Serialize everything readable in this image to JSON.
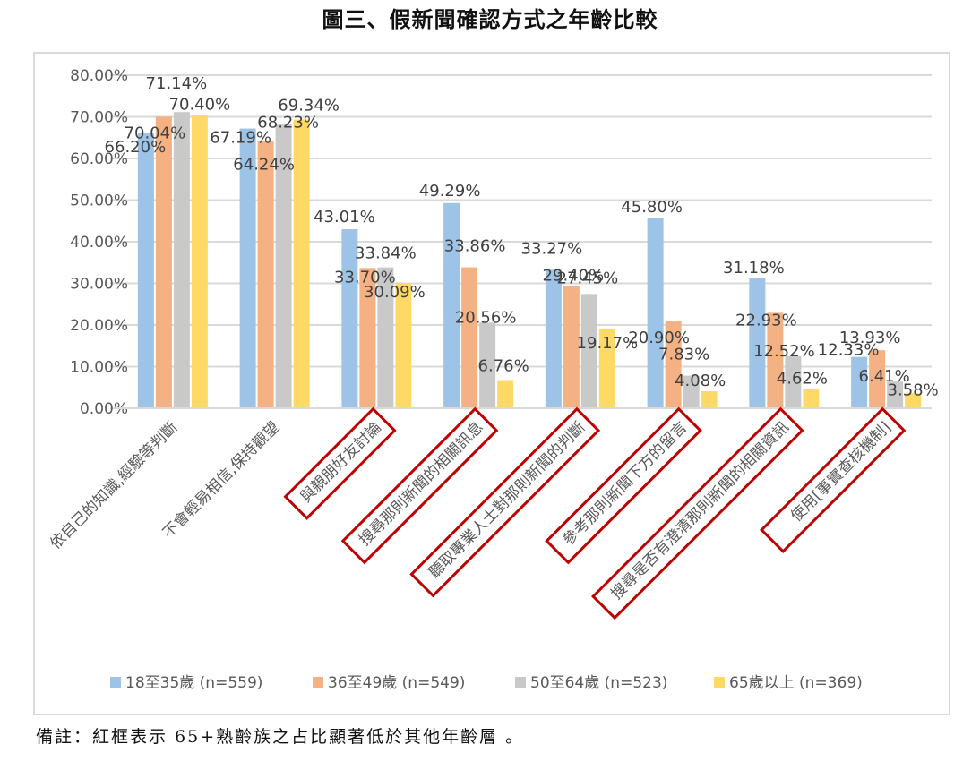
{
  "title": "圖三、假新聞確認方式之年齡比較",
  "note": "備註：紅框表示 65+熟齡族之占比顯著低於其他年齡層 。",
  "chart_data": {
    "type": "bar",
    "title": "圖三、假新聞確認方式之年齡比較",
    "xlabel": "",
    "ylabel": "",
    "ylim": [
      0,
      80
    ],
    "yticks": [
      "0.00%",
      "10.00%",
      "20.00%",
      "30.00%",
      "40.00%",
      "50.00%",
      "60.00%",
      "70.00%",
      "80.00%"
    ],
    "grid": true,
    "legend_position": "bottom",
    "categories": [
      "依自己的知識,經驗等判斷",
      "不會輕易相信,保持觀望",
      "與親朋好友討論",
      "搜尋那則新聞的相關訊息",
      "聽取專業人士對那則新聞的判斷",
      "參考那則新聞下方的留言",
      "搜尋是否有澄清那則新聞的相關資訊",
      "使用[事實查核機制]"
    ],
    "highlighted_categories": [
      false,
      false,
      true,
      true,
      true,
      true,
      true,
      true
    ],
    "highlight_color": "#c00000",
    "series": [
      {
        "name": "18至35歲 (n=559)",
        "color": "#9dc3e6",
        "values": [
          66.2,
          67.19,
          43.01,
          49.29,
          33.27,
          45.8,
          31.18,
          12.33
        ]
      },
      {
        "name": "36至49歲 (n=549)",
        "color": "#f4b183",
        "values": [
          70.04,
          64.24,
          33.7,
          33.86,
          29.4,
          20.9,
          22.93,
          13.93
        ]
      },
      {
        "name": "50至64歲 (n=523)",
        "color": "#c9c9c9",
        "values": [
          71.14,
          68.23,
          33.84,
          20.56,
          27.45,
          7.83,
          12.52,
          6.41
        ]
      },
      {
        "name": "65歲以上 (n=369)",
        "color": "#ffd966",
        "values": [
          70.4,
          69.34,
          30.09,
          6.76,
          19.17,
          4.08,
          4.62,
          3.58
        ]
      }
    ],
    "value_format": "percent_2dp"
  }
}
